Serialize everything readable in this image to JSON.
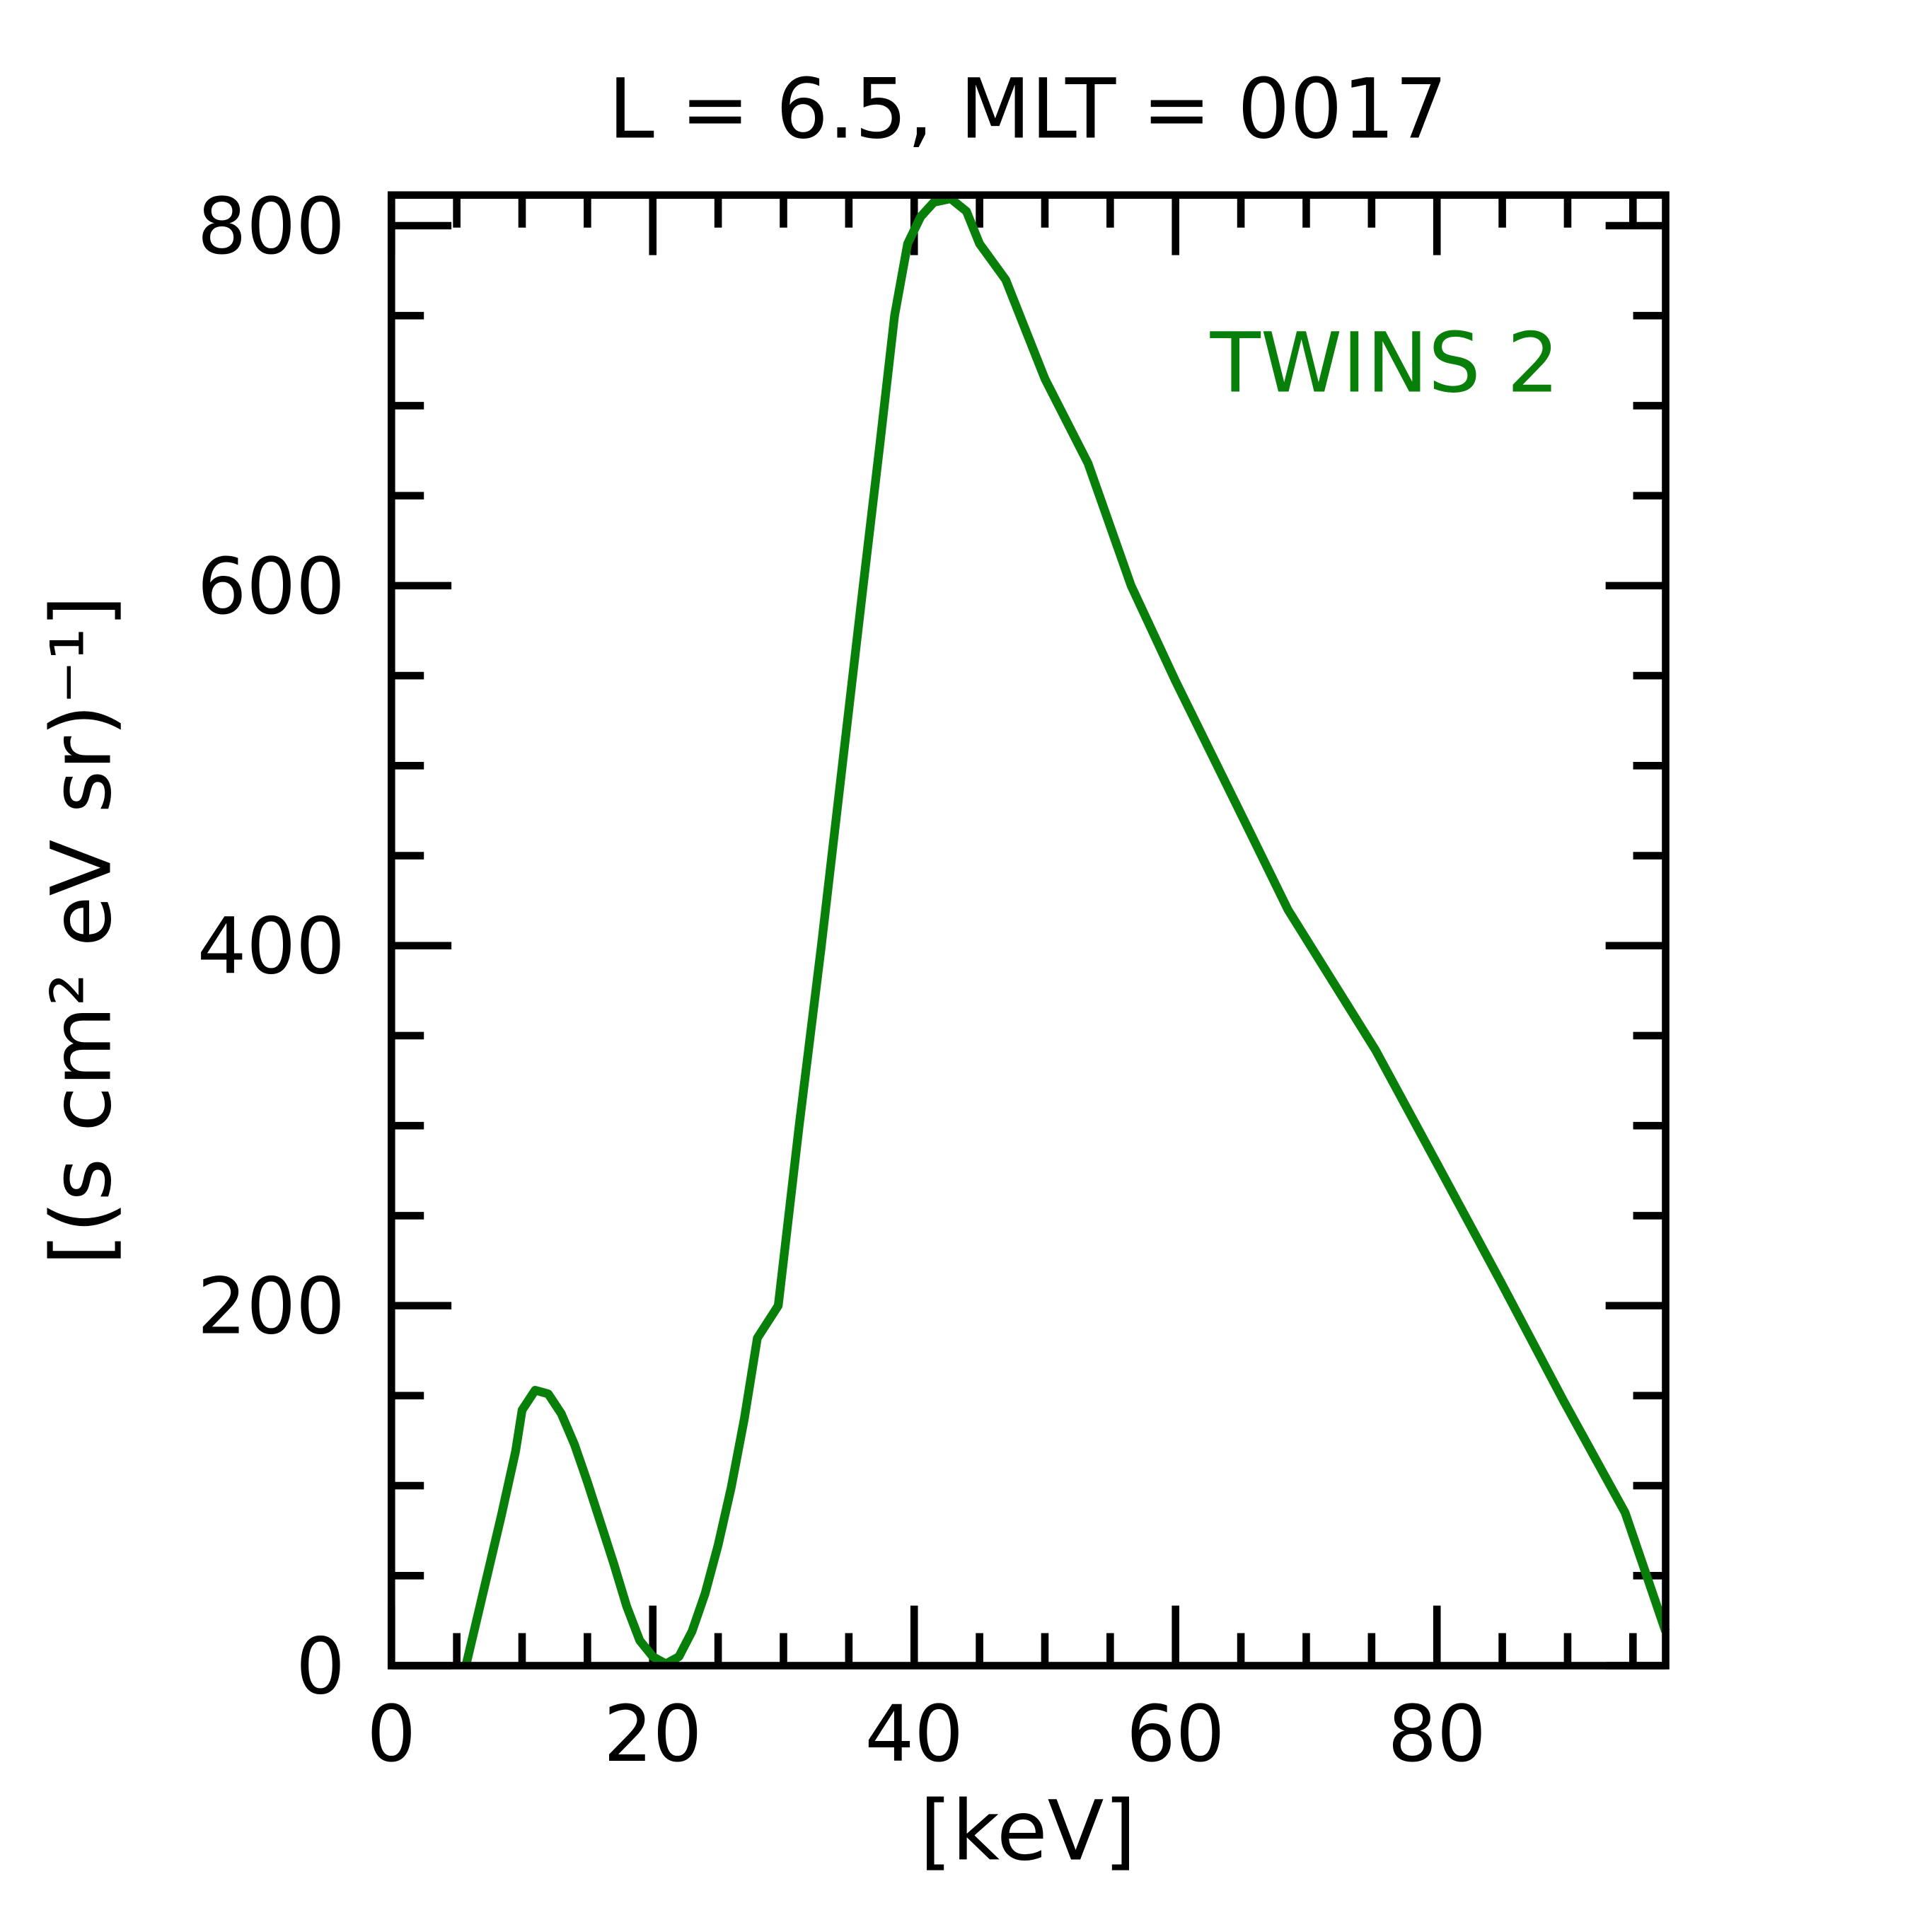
{
  "chart_data": {
    "type": "line",
    "title": "L =  6.5, MLT = 0017",
    "xlabel": "[keV]",
    "ylabel": "[(s cm² eV sr)⁻¹]",
    "xlim": [
      0,
      97.5
    ],
    "ylim": [
      0,
      817
    ],
    "xticks": [
      0,
      20,
      40,
      60,
      80
    ],
    "yticks": [
      0,
      200,
      400,
      600,
      800
    ],
    "xminorticks": [
      5,
      10,
      15,
      25,
      30,
      35,
      45,
      50,
      55,
      65,
      70,
      75,
      85,
      90,
      95
    ],
    "yminorticks": [
      50,
      100,
      150,
      250,
      300,
      350,
      450,
      500,
      550,
      650,
      700,
      750
    ],
    "series": [
      {
        "name": "TWINS 2",
        "color": "#087f08",
        "x": [
          5.7,
          8.4,
          9.5,
          10,
          11,
          12,
          13,
          14,
          15,
          17,
          18,
          19,
          20,
          21,
          22,
          23,
          24,
          25,
          26,
          27,
          28,
          29.6,
          31.2,
          32.9,
          34.5,
          36.1,
          37.4,
          38.5,
          39.5,
          40.5,
          41.5,
          42.8,
          44,
          45,
          47,
          50,
          53.3,
          56.6,
          60,
          65.7,
          68.6,
          75.3,
          80,
          84.9,
          89.7,
          94.4,
          97.5
        ],
        "values": [
          0,
          83,
          119,
          142,
          153,
          151,
          140,
          123,
          102,
          57,
          33,
          14,
          5,
          1,
          5,
          19,
          40,
          67,
          99,
          137,
          182,
          200,
          300,
          400,
          500,
          600,
          680,
          750,
          790,
          805,
          813,
          815,
          808,
          790,
          770,
          715,
          668,
          600,
          547,
          463,
          420,
          342,
          279,
          213,
          147,
          85,
          19
        ]
      }
    ]
  }
}
